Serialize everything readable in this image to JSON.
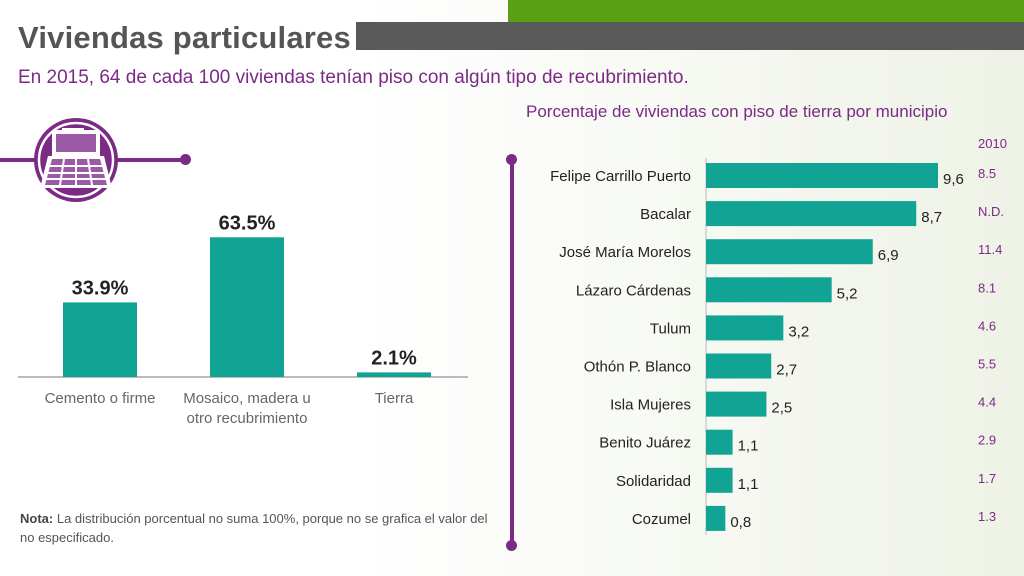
{
  "header": {
    "title": "Viviendas particulares",
    "subtitle": "En 2015, 64 de cada 100 viviendas tenían piso con algún tipo de recubrimiento."
  },
  "icon": "house-floor-icon",
  "colors": {
    "bar": "#11a394",
    "accent": "#7b2a86",
    "title_bar": "#595959",
    "top_bar": "#5aa014"
  },
  "right_panel": {
    "title": "Porcentaje de viviendas con piso de tierra por municipio",
    "year_label": "2010"
  },
  "note": {
    "label": "Nota:",
    "text": "La distribución porcentual no suma 100%, porque no se grafica el valor del no especificado."
  },
  "chart_data": [
    {
      "type": "bar",
      "title": "",
      "categories": [
        [
          "Cemento o firme"
        ],
        [
          "Mosaico, madera u",
          "otro recubrimiento"
        ],
        [
          "Tierra"
        ]
      ],
      "values": [
        33.9,
        63.5,
        2.1
      ],
      "value_labels": [
        "33.9%",
        "63.5%",
        "2.1%"
      ],
      "ylim": [
        0,
        70
      ]
    },
    {
      "type": "bar",
      "orientation": "horizontal",
      "title": "Porcentaje de viviendas con piso de tierra por municipio",
      "categories": [
        "Felipe Carrillo Puerto",
        "Bacalar",
        "José María Morelos",
        "Lázaro Cárdenas",
        "Tulum",
        "Othón P. Blanco",
        "Isla Mujeres",
        "Benito Juárez",
        "Solidaridad",
        "Cozumel"
      ],
      "values": [
        9.6,
        8.7,
        6.9,
        5.2,
        3.2,
        2.7,
        2.5,
        1.1,
        1.1,
        0.8
      ],
      "value_labels": [
        "9,6",
        "8,7",
        "6,9",
        "5,2",
        "3,2",
        "2,7",
        "2,5",
        "1,1",
        "1,1",
        "0,8"
      ],
      "values_2010": [
        "8.5",
        "N.D.",
        "11.4",
        "8.1",
        "4.6",
        "5.5",
        "4.4",
        "2.9",
        "1.7",
        "1.3"
      ],
      "xlim": [
        0,
        9.6
      ]
    }
  ]
}
